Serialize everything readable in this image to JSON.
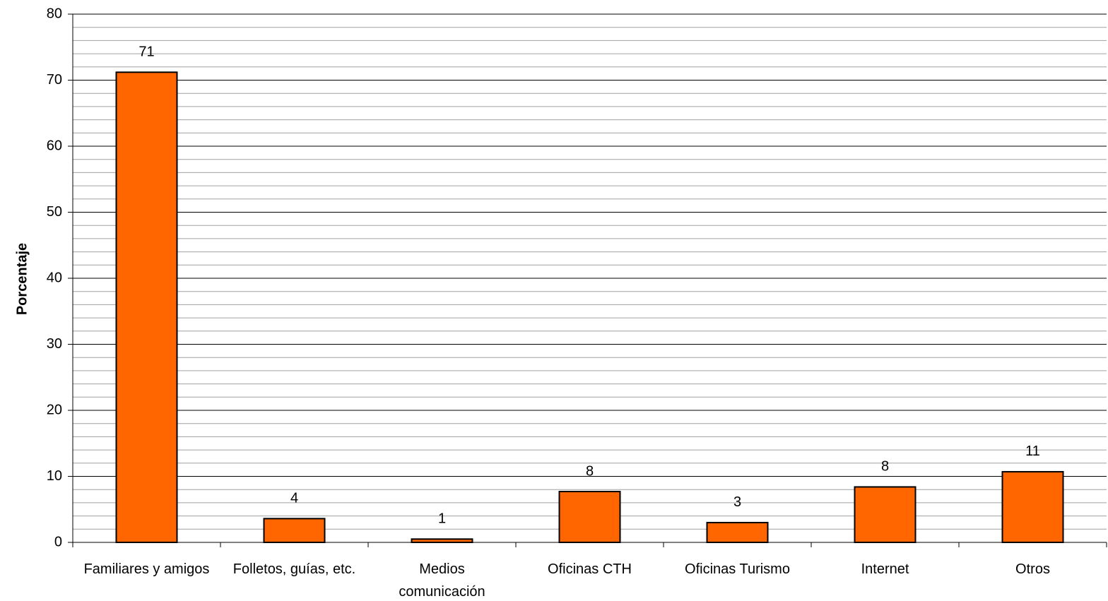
{
  "chart_data": {
    "type": "bar",
    "y_label": "Porcentaje",
    "categories": [
      "Familiares y amigos",
      "Folletos, guías, etc.",
      "Medios comunicación",
      "Oficinas CTH",
      "Oficinas Turismo",
      "Internet",
      "Otros"
    ],
    "values": [
      71.2,
      3.6,
      0.5,
      7.7,
      3.0,
      8.4,
      10.7
    ],
    "value_labels": [
      "71",
      "4",
      "1",
      "8",
      "3",
      "8",
      "11"
    ],
    "color": "#ff6600",
    "ylim": [
      0,
      80
    ],
    "yticks": [
      0,
      10,
      20,
      30,
      40,
      50,
      60,
      70,
      80
    ],
    "grid": true,
    "minor_grid_step": 2
  }
}
